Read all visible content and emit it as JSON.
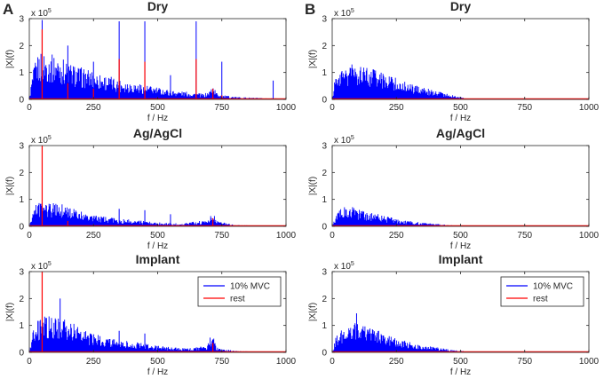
{
  "figure": {
    "panel_letters": [
      "A",
      "B"
    ]
  },
  "legend": {
    "items": [
      {
        "label": "10% MVC",
        "color": "#0000ff"
      },
      {
        "label": "rest",
        "color": "#ff0000"
      }
    ]
  },
  "colors": {
    "mvc": "#0000ff",
    "rest": "#ff0000",
    "axis": "#262626"
  },
  "chart_data": [
    {
      "panel": "A",
      "type": "area",
      "title": "Dry",
      "xlabel": "f / Hz",
      "ylabel": "|X|(f)",
      "y_exponent_label": "x 10",
      "y_exponent": "5",
      "xlim": [
        0,
        1000
      ],
      "ylim": [
        0,
        3
      ],
      "y_scale": 100000,
      "xticks": [
        "0",
        "250",
        "500",
        "750",
        "1000"
      ],
      "yticks": [
        "0",
        "1",
        "2",
        "3"
      ],
      "envelope_10mvc": {
        "x": [
          0,
          10,
          20,
          30,
          50,
          80,
          120,
          150,
          200,
          250,
          300,
          350,
          400,
          450,
          500,
          550,
          600,
          650,
          680,
          700,
          715,
          730,
          760,
          800,
          900,
          1000
        ],
        "y": [
          0,
          0.8,
          1.3,
          1.6,
          1.8,
          1.7,
          1.6,
          1.4,
          1.2,
          1.05,
          0.9,
          0.75,
          0.65,
          0.55,
          0.45,
          0.35,
          0.3,
          0.25,
          0.2,
          0.3,
          0.55,
          0.25,
          0.15,
          0.1,
          0.05,
          0.03
        ]
      },
      "peaks_10mvc": [
        {
          "x": 50,
          "y": 2.95
        },
        {
          "x": 350,
          "y": 2.9
        },
        {
          "x": 450,
          "y": 2.9
        },
        {
          "x": 650,
          "y": 2.9
        },
        {
          "x": 150,
          "y": 2.0
        },
        {
          "x": 250,
          "y": 1.4
        },
        {
          "x": 550,
          "y": 0.9
        },
        {
          "x": 750,
          "y": 1.4
        },
        {
          "x": 950,
          "y": 0.7
        }
      ],
      "peaks_rest": [
        {
          "x": 50,
          "y": 2.6
        },
        {
          "x": 150,
          "y": 0.6
        },
        {
          "x": 250,
          "y": 0.4
        },
        {
          "x": 350,
          "y": 1.5
        },
        {
          "x": 450,
          "y": 1.4
        },
        {
          "x": 650,
          "y": 1.5
        },
        {
          "x": 715,
          "y": 0.4
        },
        {
          "x": 750,
          "y": 0.15
        }
      ],
      "legend": false
    },
    {
      "panel": "A",
      "type": "area",
      "title": "Ag/AgCl",
      "xlabel": "f / Hz",
      "ylabel": "|X|(f)",
      "y_exponent_label": "x 10",
      "y_exponent": "5",
      "xlim": [
        0,
        1000
      ],
      "ylim": [
        0,
        3
      ],
      "y_scale": 100000,
      "xticks": [
        "0",
        "250",
        "500",
        "750",
        "1000"
      ],
      "yticks": [
        "0",
        "1",
        "2",
        "3"
      ],
      "envelope_10mvc": {
        "x": [
          0,
          15,
          30,
          60,
          100,
          150,
          200,
          250,
          300,
          400,
          500,
          600,
          650,
          690,
          705,
          715,
          730,
          800,
          900,
          1000
        ],
        "y": [
          0,
          0.6,
          0.9,
          0.95,
          0.9,
          0.75,
          0.55,
          0.45,
          0.35,
          0.25,
          0.15,
          0.1,
          0.2,
          0.2,
          0.45,
          0.55,
          0.2,
          0.05,
          0.03,
          0.02
        ]
      },
      "peaks_10mvc": [
        {
          "x": 350,
          "y": 0.65
        },
        {
          "x": 450,
          "y": 0.6
        },
        {
          "x": 550,
          "y": 0.45
        }
      ],
      "peaks_rest": [
        {
          "x": 50,
          "y": 3.0
        },
        {
          "x": 150,
          "y": 0.2
        },
        {
          "x": 715,
          "y": 0.3
        }
      ],
      "legend": false
    },
    {
      "panel": "A",
      "type": "area",
      "title": "Implant",
      "xlabel": "f / Hz",
      "ylabel": "|X|(f)",
      "y_exponent_label": "x 10",
      "y_exponent": "5",
      "xlim": [
        0,
        1000
      ],
      "ylim": [
        0,
        3
      ],
      "y_scale": 100000,
      "xticks": [
        "0",
        "250",
        "500",
        "750",
        "1000"
      ],
      "yticks": [
        "0",
        "1",
        "2",
        "3"
      ],
      "envelope_10mvc": {
        "x": [
          0,
          15,
          40,
          80,
          120,
          160,
          200,
          250,
          300,
          400,
          500,
          600,
          650,
          690,
          705,
          715,
          730,
          800,
          900,
          1000
        ],
        "y": [
          0,
          0.9,
          1.3,
          1.4,
          1.3,
          1.15,
          0.9,
          0.7,
          0.55,
          0.4,
          0.25,
          0.15,
          0.2,
          0.25,
          0.6,
          0.7,
          0.2,
          0.05,
          0.03,
          0.02
        ]
      },
      "peaks_10mvc": [
        {
          "x": 120,
          "y": 2.0
        },
        {
          "x": 350,
          "y": 0.8
        },
        {
          "x": 450,
          "y": 0.7
        }
      ],
      "peaks_rest": [
        {
          "x": 50,
          "y": 3.0
        },
        {
          "x": 715,
          "y": 0.35
        }
      ],
      "legend": true
    },
    {
      "panel": "B",
      "type": "area",
      "title": "Dry",
      "xlabel": "f / Hz",
      "ylabel": "|X|(f)",
      "y_exponent_label": "x 10",
      "y_exponent": "5",
      "xlim": [
        0,
        1000
      ],
      "ylim": [
        0,
        3
      ],
      "y_scale": 100000,
      "xticks": [
        "0",
        "250",
        "500",
        "750",
        "1000"
      ],
      "yticks": [
        "0",
        "1",
        "2",
        "3"
      ],
      "envelope_10mvc": {
        "x": [
          0,
          10,
          25,
          50,
          80,
          110,
          150,
          200,
          250,
          300,
          350,
          400,
          450,
          500,
          520,
          550,
          600,
          1000
        ],
        "y": [
          0,
          0.7,
          1.0,
          1.2,
          1.35,
          1.3,
          1.15,
          1.0,
          0.8,
          0.6,
          0.45,
          0.35,
          0.2,
          0.1,
          0.03,
          0.01,
          0,
          0
        ]
      },
      "peaks_10mvc": [],
      "peaks_rest": [],
      "legend": false
    },
    {
      "panel": "B",
      "type": "area",
      "title": "Ag/AgCl",
      "xlabel": "f / Hz",
      "ylabel": "|X|(f)",
      "y_exponent_label": "x 10",
      "y_exponent": "5",
      "xlim": [
        0,
        1000
      ],
      "ylim": [
        0,
        3
      ],
      "y_scale": 100000,
      "xticks": [
        "0",
        "250",
        "500",
        "750",
        "1000"
      ],
      "yticks": [
        "0",
        "1",
        "2",
        "3"
      ],
      "envelope_10mvc": {
        "x": [
          0,
          15,
          30,
          60,
          90,
          120,
          160,
          200,
          250,
          300,
          350,
          400,
          450,
          500,
          520,
          1000
        ],
        "y": [
          0,
          0.45,
          0.65,
          0.75,
          0.7,
          0.6,
          0.5,
          0.4,
          0.3,
          0.2,
          0.15,
          0.1,
          0.05,
          0.02,
          0,
          0
        ]
      },
      "peaks_10mvc": [],
      "peaks_rest": [],
      "legend": false
    },
    {
      "panel": "B",
      "type": "area",
      "title": "Implant",
      "xlabel": "f / Hz",
      "ylabel": "|X|(f)",
      "y_exponent_label": "x 10",
      "y_exponent": "5",
      "xlim": [
        0,
        1000
      ],
      "ylim": [
        0,
        3
      ],
      "y_scale": 100000,
      "xticks": [
        "0",
        "250",
        "500",
        "750",
        "1000"
      ],
      "yticks": [
        "0",
        "1",
        "2",
        "3"
      ],
      "envelope_10mvc": {
        "x": [
          0,
          15,
          40,
          70,
          100,
          130,
          170,
          220,
          280,
          340,
          400,
          450,
          500,
          540,
          600,
          1000
        ],
        "y": [
          0,
          0.6,
          0.9,
          1.1,
          1.15,
          1.0,
          0.85,
          0.65,
          0.45,
          0.3,
          0.2,
          0.12,
          0.06,
          0.02,
          0,
          0
        ]
      },
      "peaks_10mvc": [
        {
          "x": 95,
          "y": 1.45
        }
      ],
      "peaks_rest": [],
      "legend": true
    }
  ]
}
